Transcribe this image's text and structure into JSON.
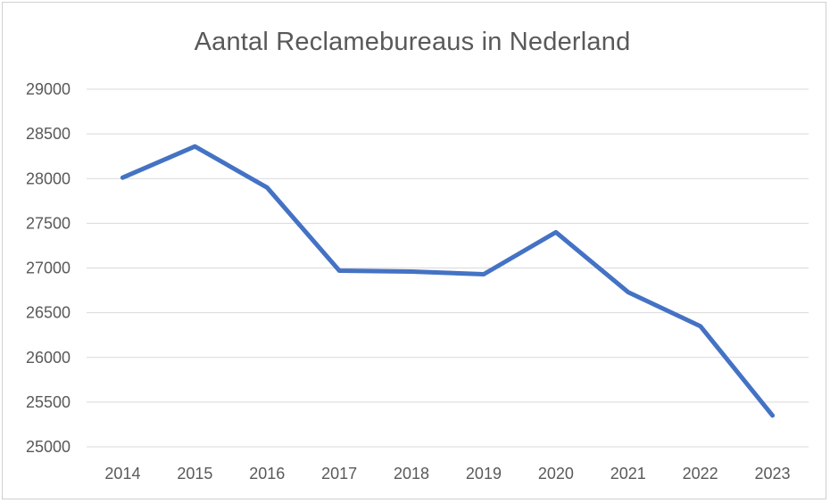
{
  "chart_data": {
    "type": "line",
    "title": "Aantal Reclamebureaus in Nederland",
    "xlabel": "",
    "ylabel": "",
    "categories": [
      "2014",
      "2015",
      "2016",
      "2017",
      "2018",
      "2019",
      "2020",
      "2021",
      "2022",
      "2023"
    ],
    "series": [
      {
        "values": [
          28010,
          28360,
          27900,
          26970,
          26960,
          26930,
          27400,
          26730,
          26350,
          25350
        ],
        "color": "#4472C4"
      }
    ],
    "ylim": [
      25000,
      29000
    ],
    "ytick_step": 500,
    "grid": "horizontal",
    "legend": "none"
  }
}
